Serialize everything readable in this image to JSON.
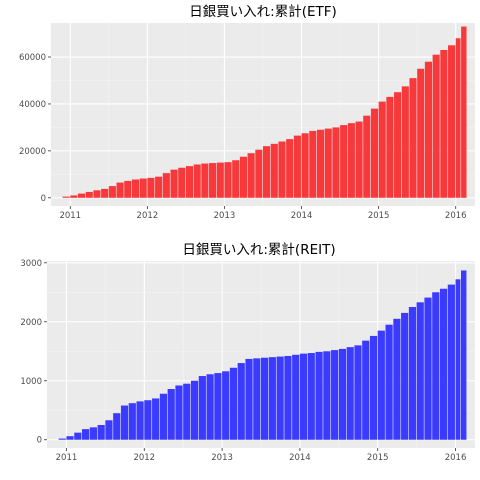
{
  "chart_data": [
    {
      "type": "bar",
      "title": "日銀買い入れ:累計(ETF)",
      "xlabel": "",
      "ylabel": "",
      "fill": "#F8393C",
      "panel_bg": "#EBEBEB",
      "xlim": [
        2010.75,
        2016.25
      ],
      "ylim": [
        -3500,
        74500
      ],
      "x_ticks": [
        {
          "value": 2011,
          "label": "2011"
        },
        {
          "value": 2012,
          "label": "2012"
        },
        {
          "value": 2013,
          "label": "2013"
        },
        {
          "value": 2014,
          "label": "2014"
        },
        {
          "value": 2015,
          "label": "2015"
        },
        {
          "value": 2016,
          "label": "2016"
        }
      ],
      "y_ticks": [
        {
          "value": 0,
          "label": "0"
        },
        {
          "value": 20000,
          "label": "20000"
        },
        {
          "value": 40000,
          "label": "40000"
        },
        {
          "value": 60000,
          "label": "60000"
        }
      ],
      "x": [
        2010.95,
        2011.05,
        2011.15,
        2011.25,
        2011.35,
        2011.45,
        2011.55,
        2011.65,
        2011.75,
        2011.85,
        2011.95,
        2012.05,
        2012.15,
        2012.25,
        2012.35,
        2012.45,
        2012.55,
        2012.65,
        2012.75,
        2012.85,
        2012.95,
        2013.05,
        2013.15,
        2013.25,
        2013.35,
        2013.45,
        2013.55,
        2013.65,
        2013.75,
        2013.85,
        2013.95,
        2014.05,
        2014.15,
        2014.25,
        2014.35,
        2014.45,
        2014.55,
        2014.65,
        2014.75,
        2014.85,
        2014.95,
        2015.05,
        2015.15,
        2015.25,
        2015.35,
        2015.45,
        2015.55,
        2015.65,
        2015.75,
        2015.85,
        2015.95,
        2016.05,
        2016.12
      ],
      "values": [
        500,
        1000,
        1800,
        2500,
        3200,
        3800,
        5000,
        6500,
        7200,
        7800,
        8200,
        8500,
        9000,
        10500,
        12000,
        12800,
        13500,
        14200,
        14600,
        14800,
        15000,
        15200,
        16000,
        17500,
        19000,
        20500,
        22000,
        23000,
        24000,
        25000,
        26500,
        27500,
        28500,
        29000,
        29500,
        30000,
        31000,
        31800,
        32500,
        35000,
        38000,
        41000,
        43000,
        45000,
        47500,
        51000,
        55000,
        58000,
        61000,
        63000,
        65000,
        68000,
        73000
      ]
    },
    {
      "type": "bar",
      "title": "日銀買い入れ:累計(REIT)",
      "xlabel": "",
      "ylabel": "",
      "fill": "#3B3BFF",
      "panel_bg": "#EBEBEB",
      "xlim": [
        2010.75,
        2016.25
      ],
      "ylim": [
        -140,
        3030
      ],
      "x_ticks": [
        {
          "value": 2011,
          "label": "2011"
        },
        {
          "value": 2012,
          "label": "2012"
        },
        {
          "value": 2013,
          "label": "2013"
        },
        {
          "value": 2014,
          "label": "2014"
        },
        {
          "value": 2015,
          "label": "2015"
        },
        {
          "value": 2016,
          "label": "2016"
        }
      ],
      "y_ticks": [
        {
          "value": 0,
          "label": "0"
        },
        {
          "value": 1000,
          "label": "1000"
        },
        {
          "value": 2000,
          "label": "2000"
        },
        {
          "value": 3000,
          "label": "3000"
        }
      ],
      "x": [
        2010.95,
        2011.05,
        2011.15,
        2011.25,
        2011.35,
        2011.45,
        2011.55,
        2011.65,
        2011.75,
        2011.85,
        2011.95,
        2012.05,
        2012.15,
        2012.25,
        2012.35,
        2012.45,
        2012.55,
        2012.65,
        2012.75,
        2012.85,
        2012.95,
        2013.05,
        2013.15,
        2013.25,
        2013.35,
        2013.45,
        2013.55,
        2013.65,
        2013.75,
        2013.85,
        2013.95,
        2014.05,
        2014.15,
        2014.25,
        2014.35,
        2014.45,
        2014.55,
        2014.65,
        2014.75,
        2014.85,
        2014.95,
        2015.05,
        2015.15,
        2015.25,
        2015.35,
        2015.45,
        2015.55,
        2015.65,
        2015.75,
        2015.85,
        2015.95,
        2016.05,
        2016.12
      ],
      "values": [
        20,
        60,
        120,
        180,
        210,
        250,
        330,
        450,
        580,
        620,
        650,
        670,
        700,
        780,
        860,
        920,
        950,
        1000,
        1080,
        1110,
        1130,
        1160,
        1220,
        1300,
        1370,
        1380,
        1390,
        1400,
        1410,
        1420,
        1440,
        1460,
        1470,
        1490,
        1500,
        1520,
        1540,
        1570,
        1600,
        1680,
        1760,
        1850,
        1950,
        2050,
        2150,
        2250,
        2330,
        2410,
        2500,
        2560,
        2630,
        2720,
        2870
      ]
    }
  ]
}
